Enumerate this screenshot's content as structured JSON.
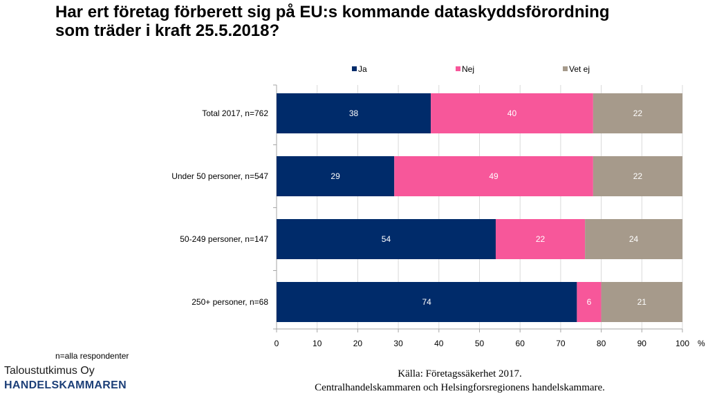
{
  "colors": {
    "ja": "#002B6A",
    "nej": "#F7579A",
    "vet_ej": "#A69A8B",
    "grid": "#D9D9D9",
    "axis": "#A6A6A6",
    "bar_label": "#FFFFFF"
  },
  "chart_data": {
    "type": "bar",
    "orientation": "horizontal",
    "stacked": true,
    "title": "Har ert företag förberett sig på EU:s kommande dataskyddsförordning som träder i kraft 25.5.2018?",
    "title_lines": [
      "Har ert företag förberett sig på EU:s kommande dataskyddsförordning",
      "som träder i kraft 25.5.2018?"
    ],
    "categories": [
      "Total 2017, n=762",
      "Under 50 personer, n=547",
      "50-249 personer, n=147",
      "250+ personer, n=68"
    ],
    "series": [
      {
        "name": "Ja",
        "color_key": "ja",
        "values": [
          38,
          29,
          54,
          74
        ]
      },
      {
        "name": "Nej",
        "color_key": "nej",
        "values": [
          40,
          49,
          22,
          6
        ]
      },
      {
        "name": "Vet ej",
        "color_key": "vet_ej",
        "values": [
          22,
          22,
          24,
          21
        ]
      }
    ],
    "xlim": [
      0,
      100
    ],
    "xticks": [
      "0",
      "10",
      "20",
      "30",
      "40",
      "50",
      "60",
      "70",
      "80",
      "90",
      "100"
    ],
    "xunit": "%",
    "grid": true,
    "legend_position": "top"
  },
  "footer": {
    "note": "n=alla respondenter",
    "logo_line1": "Taloustutkimus Oy",
    "logo_line2": "HANDELSKAMMAREN",
    "source_line1": "Källa: Företagssäkerhet 2017.",
    "source_line2": "Centralhandelskammaren och Helsingforsregionens handelskammare."
  }
}
